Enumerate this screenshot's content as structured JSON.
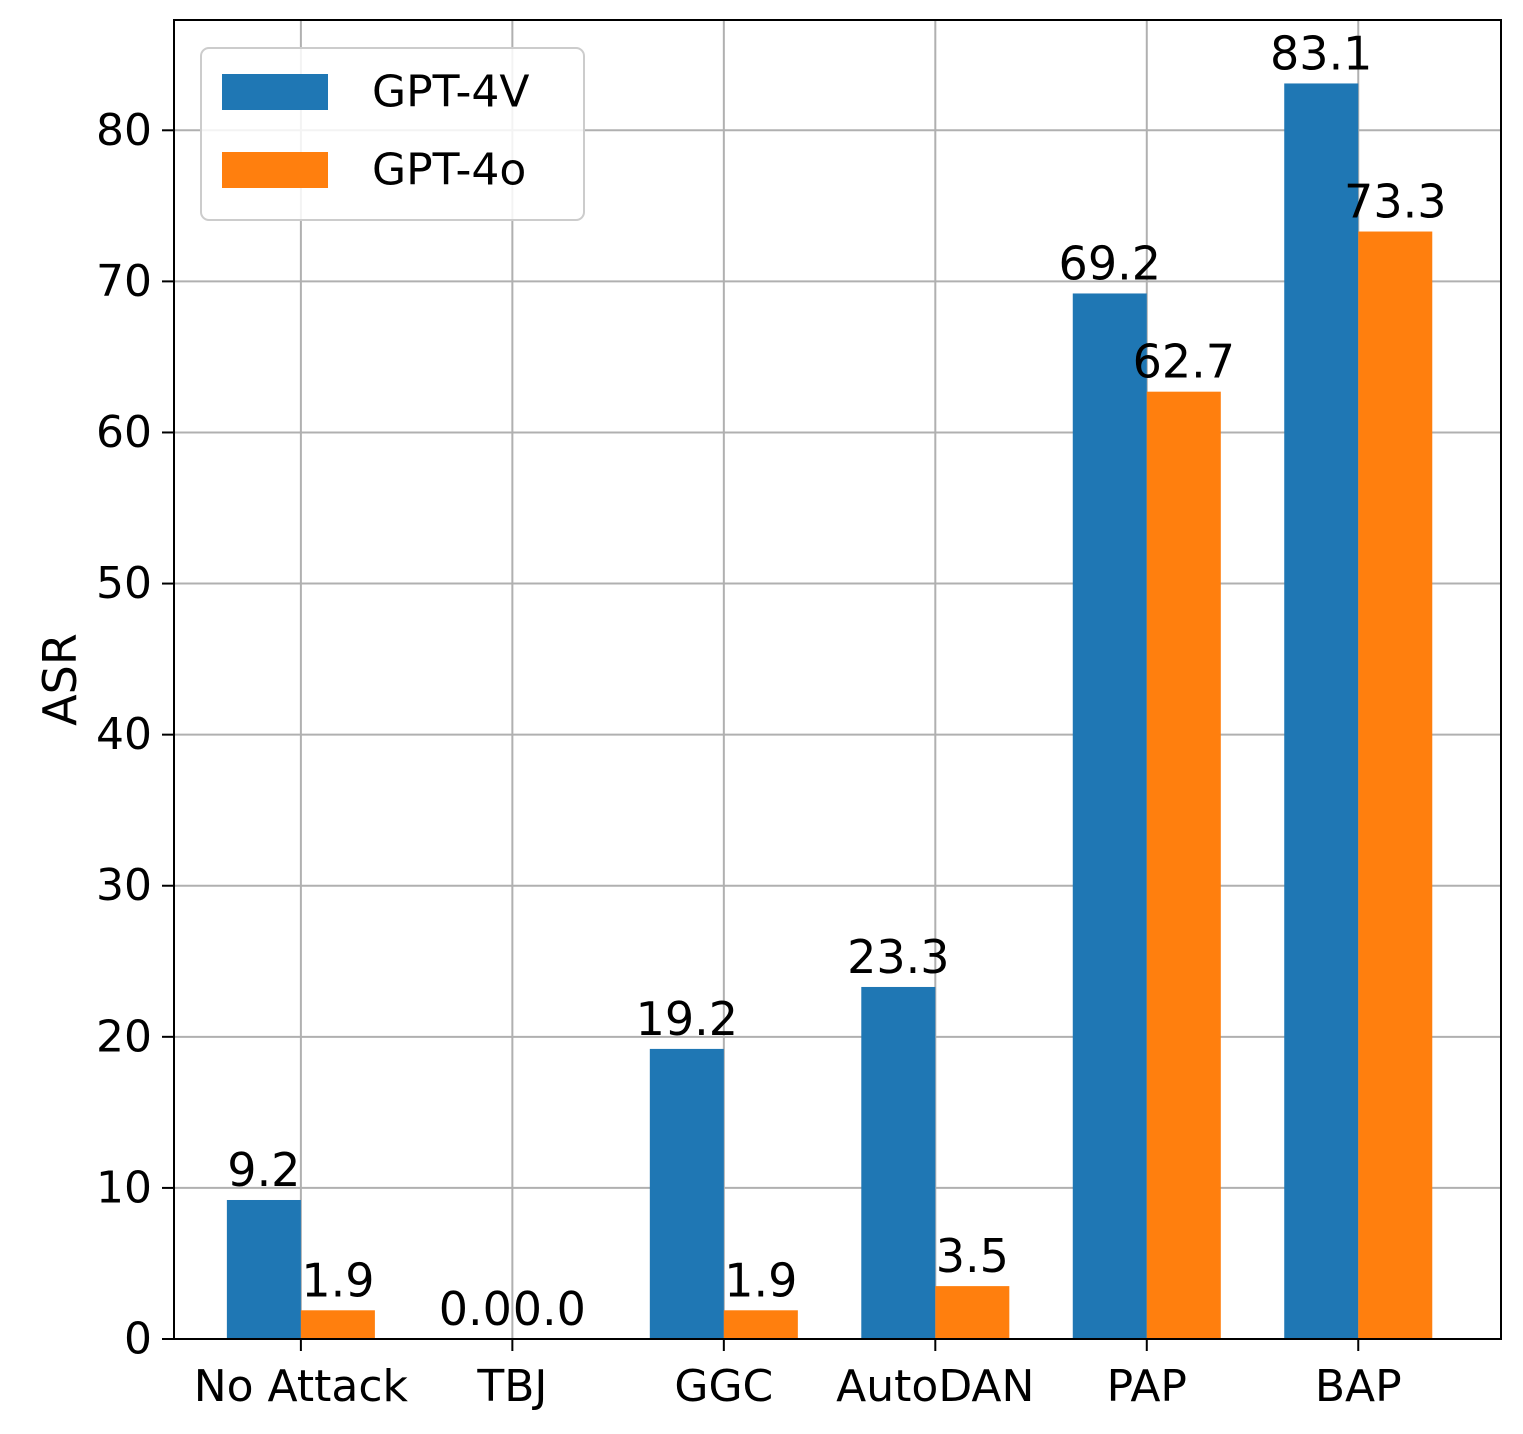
{
  "chart_data": {
    "type": "bar",
    "categories": [
      "No Attack",
      "TBJ",
      "GGC",
      "AutoDAN",
      "PAP",
      "BAP"
    ],
    "series": [
      {
        "name": "GPT-4V",
        "color": "#1f77b4",
        "values": [
          9.2,
          0.0,
          19.2,
          23.3,
          69.2,
          83.1
        ],
        "labels": [
          "9.2",
          "0.0",
          "19.2",
          "23.3",
          "69.2",
          "83.1"
        ]
      },
      {
        "name": "GPT-4o",
        "color": "#ff7f0e",
        "values": [
          1.9,
          0.0,
          1.9,
          3.5,
          62.7,
          73.3
        ],
        "labels": [
          "1.9",
          "0.0",
          "1.9",
          "3.5",
          "62.7",
          "73.3"
        ]
      }
    ],
    "title": "",
    "xlabel": "",
    "ylabel": "ASR",
    "ylim": [
      0,
      87.3
    ],
    "yticks": [
      0,
      10,
      20,
      30,
      40,
      50,
      60,
      70,
      80
    ],
    "ytick_labels": [
      "0",
      "10",
      "20",
      "30",
      "40",
      "50",
      "60",
      "70",
      "80"
    ],
    "grid": true,
    "legend": "top-left"
  }
}
